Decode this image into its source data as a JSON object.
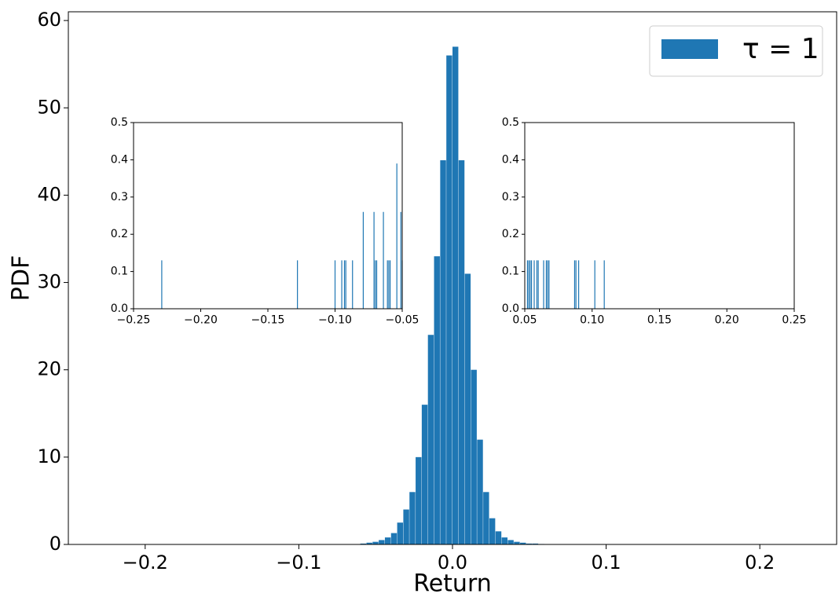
{
  "chart_data": [
    {
      "type": "histogram",
      "xlabel": "Return",
      "ylabel": "PDF",
      "bins": [
        -0.06,
        -0.056,
        -0.052,
        -0.048,
        -0.044,
        -0.04,
        -0.036,
        -0.032,
        -0.028,
        -0.024,
        -0.02,
        -0.016,
        -0.012,
        -0.008,
        -0.004,
        0,
        0.004,
        0.008,
        0.012,
        0.016,
        0.02,
        0.024,
        0.028,
        0.032,
        0.036,
        0.04,
        0.044,
        0.048,
        0.052,
        0.056,
        0.06
      ],
      "series": [
        {
          "name": "τ = 1",
          "color": "#1f77b4",
          "values": [
            0.1,
            0.2,
            0.3,
            0.5,
            0.8,
            1.3,
            2.5,
            4,
            6,
            10,
            16,
            24,
            33,
            44,
            56,
            57,
            44,
            31,
            20,
            12,
            6,
            3,
            1.5,
            0.8,
            0.5,
            0.3,
            0.2,
            0.1,
            0.1,
            0.05
          ]
        }
      ],
      "xlim": [
        -0.25,
        0.25
      ],
      "ylim": [
        0,
        61
      ],
      "xticks": [
        {
          "value": -0.2,
          "label": "−0.2"
        },
        {
          "value": -0.1,
          "label": "−0.1"
        },
        {
          "value": 0,
          "label": "0.0"
        },
        0.1,
        0.2
      ],
      "yticks": [
        0,
        10,
        20,
        30,
        40,
        50,
        60
      ],
      "grid": false,
      "legend": "upper right"
    },
    {
      "type": "bar",
      "color": "#1f77b4",
      "x": [
        -0.229,
        -0.128,
        -0.1,
        -0.095,
        -0.093,
        -0.092,
        -0.087,
        -0.079,
        -0.071,
        -0.07,
        -0.069,
        -0.064,
        -0.061,
        -0.06,
        -0.059,
        -0.054,
        -0.051,
        -0.05
      ],
      "values": [
        0.13,
        0.13,
        0.13,
        0.13,
        0.13,
        0.13,
        0.13,
        0.26,
        0.26,
        0.13,
        0.13,
        0.26,
        0.13,
        0.13,
        0.13,
        0.39,
        0.26,
        0.13
      ],
      "xlim": [
        -0.25,
        -0.05
      ],
      "ylim": [
        0,
        0.5
      ],
      "xticks": [
        {
          "value": -0.25,
          "label": "−0.25"
        },
        {
          "value": -0.2,
          "label": "−0.20"
        },
        {
          "value": -0.15,
          "label": "−0.15"
        },
        {
          "value": -0.1,
          "label": "−0.10"
        },
        {
          "value": -0.05,
          "label": "−0.05"
        }
      ],
      "yticks": [
        {
          "value": 0,
          "label": "0.0"
        },
        0.1,
        0.2,
        0.3,
        0.4,
        0.5
      ]
    },
    {
      "type": "bar",
      "color": "#1f77b4",
      "x": [
        0.052,
        0.053,
        0.054,
        0.055,
        0.057,
        0.059,
        0.06,
        0.064,
        0.066,
        0.067,
        0.068,
        0.087,
        0.088,
        0.09,
        0.102,
        0.109
      ],
      "values": [
        0.13,
        0.13,
        0.13,
        0.13,
        0.13,
        0.13,
        0.13,
        0.13,
        0.13,
        0.13,
        0.13,
        0.13,
        0.13,
        0.13,
        0.13,
        0.13
      ],
      "xlim": [
        0.05,
        0.25
      ],
      "ylim": [
        0,
        0.5
      ],
      "xticks": [
        0.05,
        {
          "value": 0.1,
          "label": "0.10"
        },
        0.15,
        {
          "value": 0.2,
          "label": "0.20"
        },
        0.25
      ],
      "yticks": [
        {
          "value": 0,
          "label": "0.0"
        },
        0.1,
        0.2,
        0.3,
        0.4,
        0.5
      ]
    }
  ]
}
